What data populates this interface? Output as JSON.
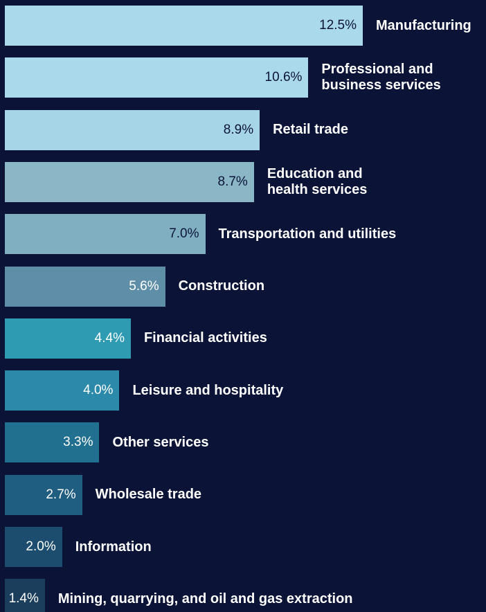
{
  "chart_data": {
    "type": "bar",
    "orientation": "horizontal",
    "categories": [
      "Manufacturing",
      "Professional and\nbusiness services",
      "Retail trade",
      "Education and\nhealth services",
      "Transportation and utilities",
      "Construction",
      "Financial activities",
      "Leisure and hospitality",
      "Other services",
      "Wholesale trade",
      "Information",
      "Mining, quarrying, and oil and gas extraction"
    ],
    "values": [
      12.5,
      10.6,
      8.9,
      8.7,
      7.0,
      5.6,
      4.4,
      4.0,
      3.3,
      2.7,
      2.0,
      1.4
    ],
    "value_labels": [
      "12.5%",
      "10.6%",
      "8.9%",
      "8.7%",
      "7.0%",
      "5.6%",
      "4.4%",
      "4.0%",
      "3.3%",
      "2.7%",
      "2.0%",
      "1.4%"
    ],
    "colors": [
      "#a9d9ea",
      "#a9d9ea",
      "#a6d5e7",
      "#8ab6c6",
      "#80afc1",
      "#5f8ea8",
      "#2f9bb2",
      "#2b89aa",
      "#22708f",
      "#1f5e80",
      "#1d4d6e",
      "#1a3e5c"
    ],
    "xlim": [
      0,
      12.5
    ]
  }
}
